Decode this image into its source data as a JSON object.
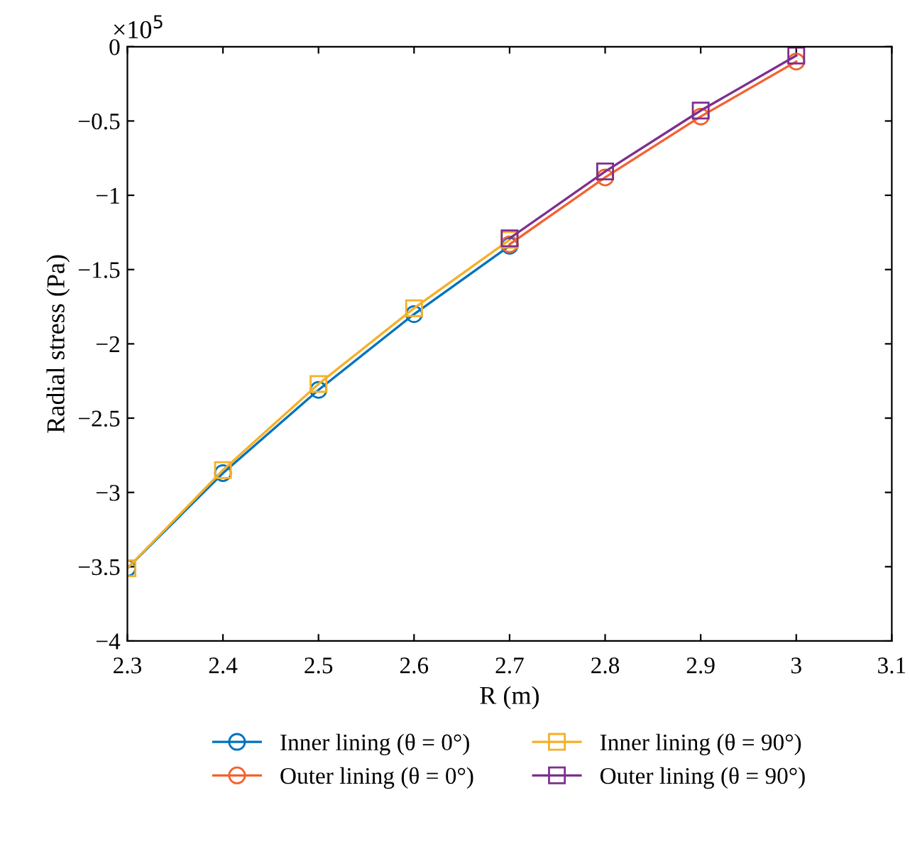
{
  "chart_data": {
    "type": "line",
    "xlabel": "R (m)",
    "ylabel": "Radial stress (Pa)",
    "annotations": [
      "×10$^{5}$"
    ],
    "xlim": [
      2.3,
      3.1
    ],
    "xticks": [
      2.3,
      2.4,
      2.5,
      2.6,
      2.7,
      2.8,
      2.9,
      3,
      3.1
    ],
    "ylim": [
      -4,
      0
    ],
    "yticks": [
      {
        "value": -4,
        "label": "−4"
      },
      {
        "value": -3.5,
        "label": "−3.5"
      },
      {
        "value": -3,
        "label": "−3"
      },
      {
        "value": -2.5,
        "label": "−2.5"
      },
      {
        "value": -2,
        "label": "−2"
      },
      {
        "value": -1.5,
        "label": "−1.5"
      },
      {
        "value": -1,
        "label": "−1"
      },
      {
        "value": -0.5,
        "label": "−0.5"
      },
      0
    ],
    "grid": false,
    "legend": "bottom",
    "line_style": "solid",
    "series": [
      {
        "name": "Inner lining (θ = 0°)",
        "color": "#0072bd",
        "marker": "circle",
        "x": [
          2.3,
          2.4,
          2.5,
          2.6,
          2.7
        ],
        "values": [
          -3.51,
          -2.87,
          -2.31,
          -1.8,
          -1.34
        ]
      },
      {
        "name": "Outer lining (θ = 0°)",
        "color": "#f4622d",
        "marker": "circle",
        "x": [
          2.7,
          2.8,
          2.9,
          3.0
        ],
        "values": [
          -1.33,
          -0.88,
          -0.47,
          -0.1
        ]
      },
      {
        "name": "Inner lining (θ = 90°)",
        "color": "#f5b027",
        "marker": "square",
        "x": [
          2.3,
          2.4,
          2.5,
          2.6,
          2.7
        ],
        "values": [
          -3.51,
          -2.85,
          -2.27,
          -1.76,
          -1.3
        ]
      },
      {
        "name": "Outer lining (θ = 90°)",
        "color": "#7e2f8e",
        "marker": "square",
        "x": [
          2.7,
          2.8,
          2.9,
          3.0
        ],
        "values": [
          -1.29,
          -0.84,
          -0.43,
          -0.06
        ]
      }
    ]
  }
}
